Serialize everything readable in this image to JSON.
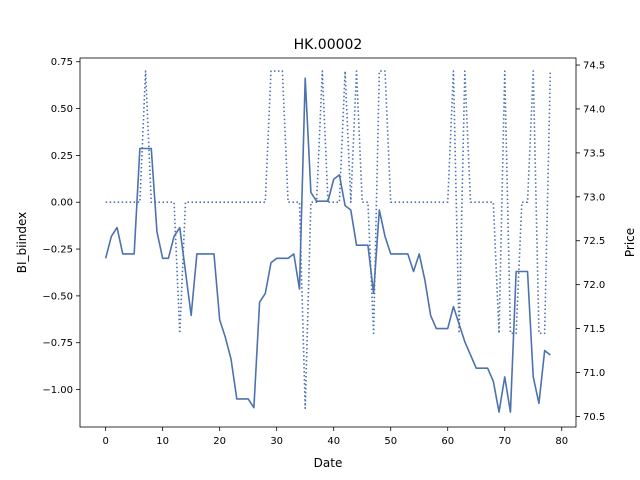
{
  "chart_data": {
    "type": "line",
    "title": "HK.00002",
    "xlabel": "Date",
    "ylabel_left": "BI_biindex",
    "ylabel_right": "Price",
    "xlim": [
      -4.5,
      82.5
    ],
    "ylim_left": [
      -1.2,
      0.77
    ],
    "ylim_right": [
      70.38,
      74.58
    ],
    "x_ticks": [
      0,
      10,
      20,
      30,
      40,
      50,
      60,
      70,
      80
    ],
    "y_left_ticks": [
      0.75,
      0.5,
      0.25,
      0.0,
      -0.25,
      -0.5,
      -0.75,
      -1.0
    ],
    "y_left_tick_labels": [
      "0.75",
      "0.50",
      "0.25",
      "0.00",
      "−0.25",
      "−0.50",
      "−0.75",
      "−1.00"
    ],
    "y_right_ticks": [
      74.5,
      74.0,
      73.5,
      73.0,
      72.5,
      72.0,
      71.5,
      71.0,
      70.5
    ],
    "y_right_tick_labels": [
      "74.5",
      "74.0",
      "73.5",
      "73.0",
      "72.5",
      "72.0",
      "71.5",
      "71.0",
      "70.5"
    ],
    "grid": false,
    "line_color": "#4c72b0",
    "series": [
      {
        "axis": "right",
        "style": "solid",
        "x": [
          0,
          1,
          2,
          3,
          4,
          5,
          6,
          7,
          8,
          9,
          10,
          11,
          12,
          13,
          14,
          15,
          16,
          17,
          18,
          19,
          20,
          21,
          22,
          23,
          24,
          25,
          26,
          27,
          28,
          29,
          30,
          31,
          32,
          33,
          34,
          35,
          36,
          37,
          38,
          39,
          40,
          41,
          42,
          43,
          44,
          45,
          46,
          47,
          48,
          49,
          50,
          51,
          52,
          53,
          54,
          55,
          56,
          57,
          58,
          59,
          60,
          61,
          62,
          63,
          64,
          65,
          66,
          67,
          68,
          69,
          70,
          71,
          72,
          73,
          74,
          75,
          76,
          77,
          78
        ],
        "values": [
          72.3,
          72.55,
          72.65,
          72.35,
          72.35,
          72.35,
          73.55,
          73.55,
          73.55,
          72.6,
          72.3,
          72.3,
          72.55,
          72.65,
          72.15,
          71.65,
          72.35,
          72.35,
          72.35,
          72.35,
          71.6,
          71.4,
          71.15,
          70.7,
          70.7,
          70.7,
          70.6,
          71.8,
          71.9,
          72.25,
          72.3,
          72.3,
          72.3,
          72.35,
          71.95,
          74.35,
          73.05,
          72.95,
          72.95,
          72.95,
          73.2,
          73.25,
          72.9,
          72.85,
          72.45,
          72.45,
          72.45,
          71.9,
          72.85,
          72.55,
          72.35,
          72.35,
          72.35,
          72.35,
          72.15,
          72.35,
          72.05,
          71.65,
          71.5,
          71.5,
          71.5,
          71.75,
          71.55,
          71.35,
          71.2,
          71.05,
          71.05,
          71.05,
          70.9,
          70.55,
          70.95,
          70.55,
          72.15,
          72.15,
          72.15,
          70.95,
          70.65,
          71.25,
          71.2
        ]
      },
      {
        "axis": "left",
        "style": "dotted",
        "x": [
          0,
          1,
          2,
          3,
          4,
          5,
          6,
          7,
          8,
          9,
          10,
          11,
          12,
          13,
          14,
          15,
          16,
          17,
          18,
          19,
          20,
          21,
          22,
          23,
          24,
          25,
          26,
          27,
          28,
          29,
          30,
          31,
          32,
          33,
          34,
          35,
          36,
          37,
          38,
          39,
          40,
          41,
          42,
          43,
          44,
          45,
          46,
          47,
          48,
          49,
          50,
          51,
          52,
          53,
          54,
          55,
          56,
          57,
          58,
          59,
          60,
          61,
          62,
          63,
          64,
          65,
          66,
          67,
          68,
          69,
          70,
          71,
          72,
          73,
          74,
          75,
          76,
          77,
          78
        ],
        "values": [
          0,
          0,
          0,
          0,
          0,
          0,
          0,
          0.7,
          0,
          0,
          0,
          0,
          0,
          -0.7,
          0,
          0,
          0,
          0,
          0,
          0,
          0,
          0,
          0,
          0,
          0,
          0,
          0,
          0,
          0,
          0.7,
          0.7,
          0.7,
          0,
          0,
          0,
          -1.1,
          0,
          0,
          0.7,
          0,
          0,
          0,
          0.7,
          0,
          0.7,
          0,
          0,
          -0.7,
          0.7,
          0.7,
          0,
          0,
          0,
          0,
          0,
          0,
          0,
          0,
          0,
          0,
          0,
          0.7,
          -0.7,
          0.7,
          0,
          0,
          0,
          0,
          0,
          -0.7,
          0.7,
          -0.7,
          -0.7,
          0,
          0,
          0.7,
          -0.7,
          -0.7,
          0.7
        ]
      }
    ]
  }
}
